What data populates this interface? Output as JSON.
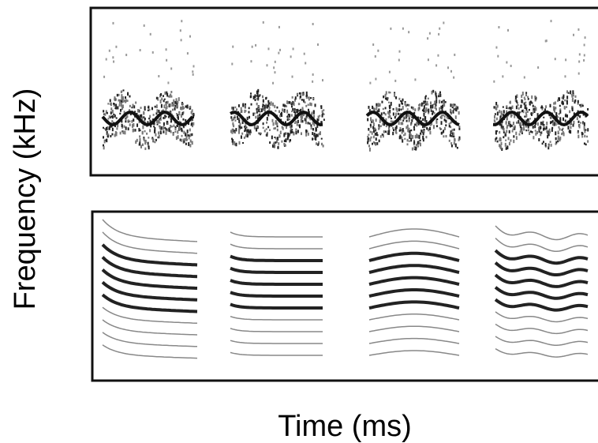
{
  "axes": {
    "y_label": "Frequency (kHz)",
    "x_label": "Time (ms)"
  }
}
